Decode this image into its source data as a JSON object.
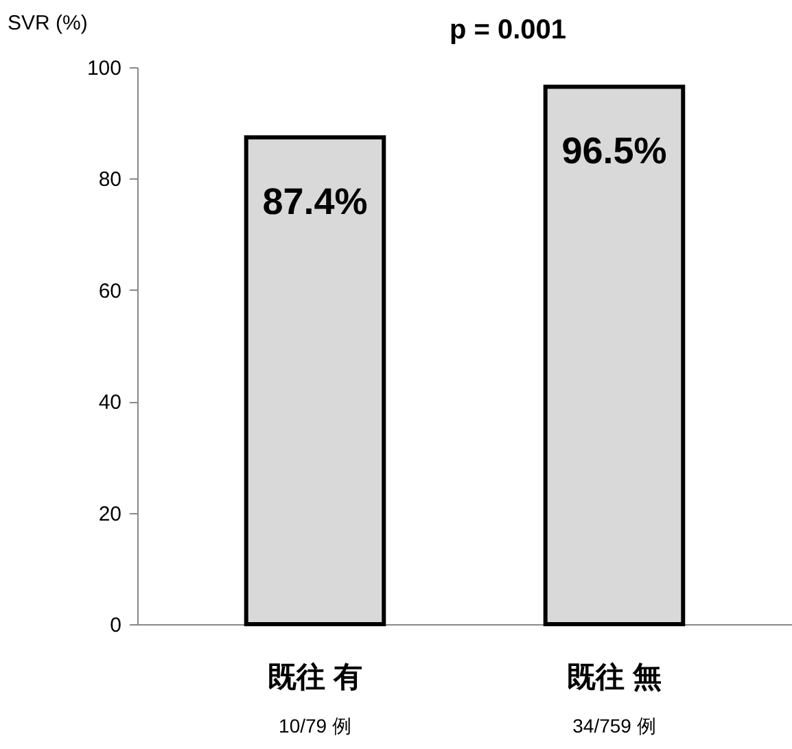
{
  "chart_data": {
    "type": "bar",
    "title": "p = 0.001",
    "ylabel": "SVR (%)",
    "categories": [
      "既往 有",
      "既往 無"
    ],
    "values": [
      87.4,
      96.5
    ],
    "value_labels": [
      "87.4%",
      "96.5%"
    ],
    "color": "#d9d9d9",
    "ylim": [
      0,
      100
    ],
    "yticks": [
      0,
      20,
      40,
      60,
      80,
      100
    ],
    "annotations": [
      "10/79 例",
      "34/759 例"
    ]
  }
}
